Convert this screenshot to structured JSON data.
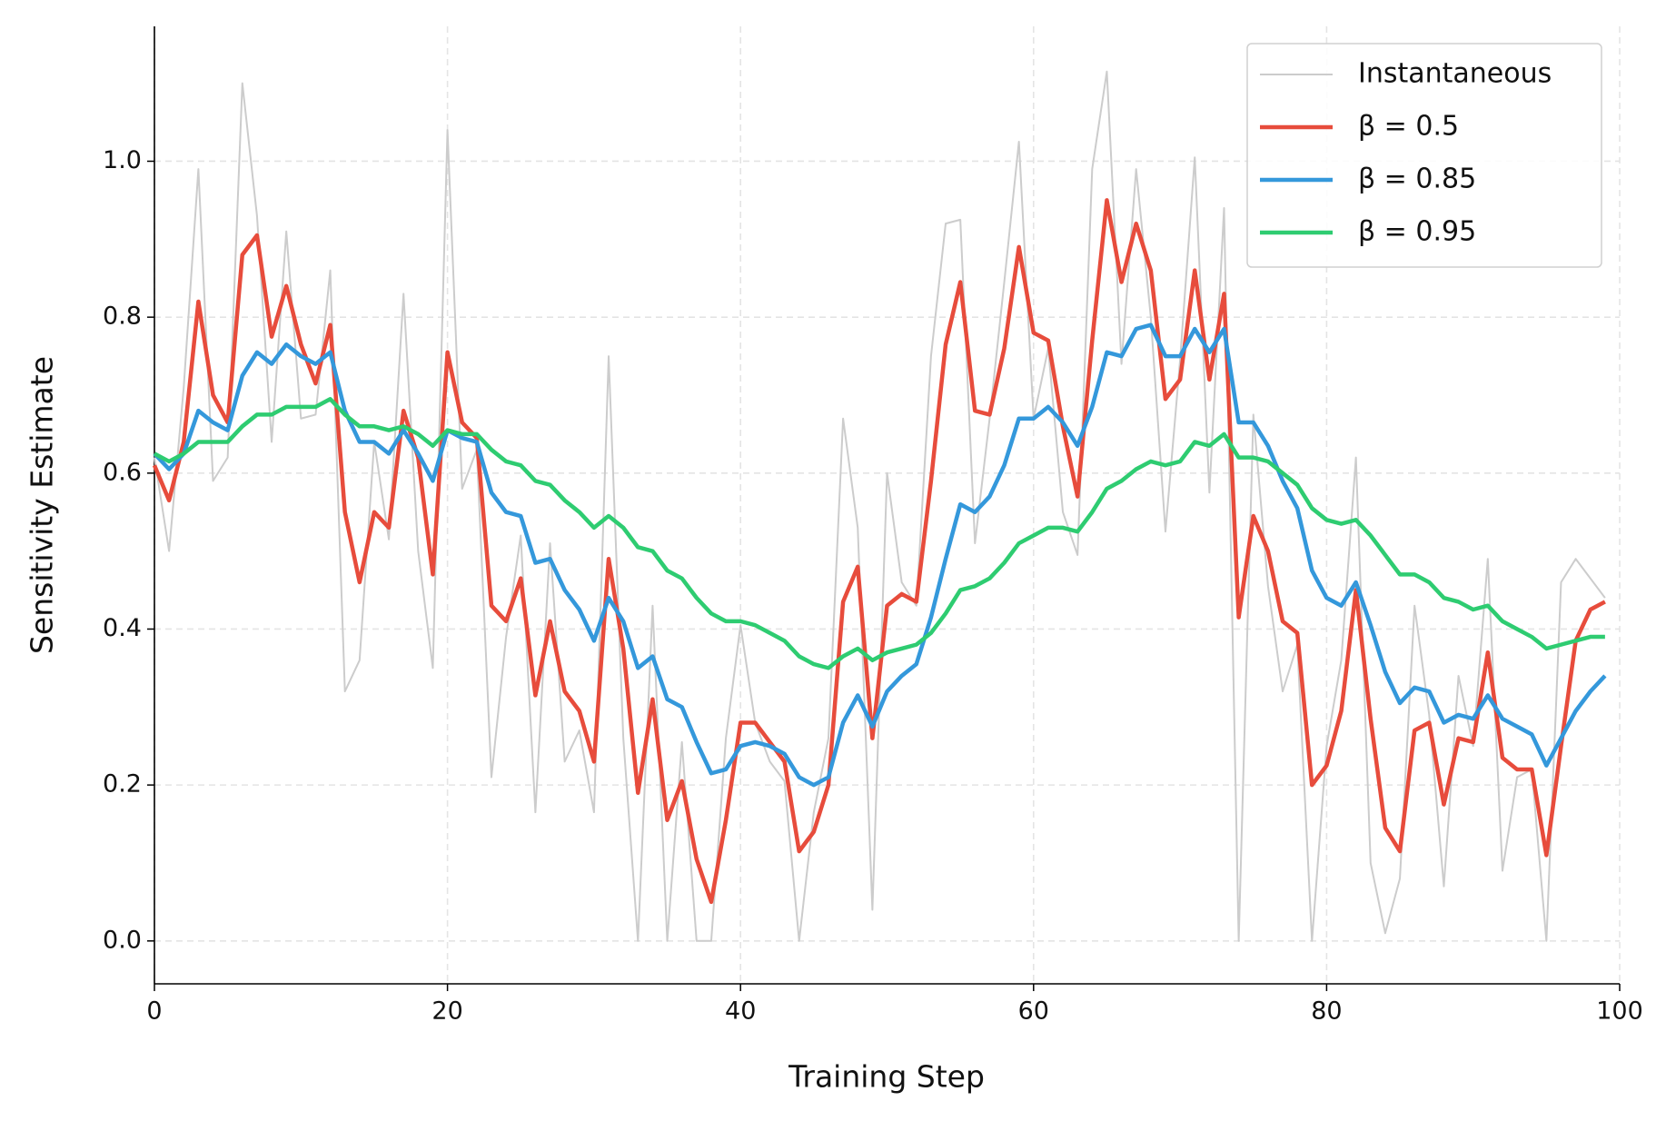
{
  "chart_data": {
    "type": "line",
    "xlabel": "Training Step",
    "ylabel": "Sensitivity Estimate",
    "xlim": [
      0,
      100
    ],
    "ylim": [
      -0.055,
      1.173
    ],
    "xticks": [
      0,
      20,
      40,
      60,
      80,
      100
    ],
    "yticks": [
      {
        "value": 0,
        "label": "0.0"
      },
      0.2,
      0.4,
      0.6,
      0.8,
      {
        "value": 1,
        "label": "1.0"
      }
    ],
    "grid": true,
    "legend": "upper right",
    "x": [
      0,
      1,
      2,
      3,
      4,
      5,
      6,
      7,
      8,
      9,
      10,
      11,
      12,
      13,
      14,
      15,
      16,
      17,
      18,
      19,
      20,
      21,
      22,
      23,
      24,
      25,
      26,
      27,
      28,
      29,
      30,
      31,
      32,
      33,
      34,
      35,
      36,
      37,
      38,
      39,
      40,
      41,
      42,
      43,
      44,
      45,
      46,
      47,
      48,
      49,
      50,
      51,
      52,
      53,
      54,
      55,
      56,
      57,
      58,
      59,
      60,
      61,
      62,
      63,
      64,
      65,
      66,
      67,
      68,
      69,
      70,
      71,
      72,
      73,
      74,
      75,
      76,
      77,
      78,
      79,
      80,
      81,
      82,
      83,
      84,
      85,
      86,
      87,
      88,
      89,
      90,
      91,
      92,
      93,
      94,
      95,
      96,
      97,
      98,
      99
    ],
    "series": [
      {
        "name": "Instantaneous",
        "color": "#cccccc",
        "width": 2,
        "values": [
          0.62,
          0.5,
          0.71,
          0.99,
          0.59,
          0.62,
          1.1,
          0.93,
          0.64,
          0.91,
          0.67,
          0.675,
          0.86,
          0.32,
          0.36,
          0.64,
          0.515,
          0.83,
          0.5,
          0.35,
          1.04,
          0.58,
          0.63,
          0.21,
          0.39,
          0.52,
          0.165,
          0.51,
          0.23,
          0.27,
          0.165,
          0.75,
          0.26,
          0,
          0.43,
          0,
          0.255,
          0,
          0,
          0.26,
          0.405,
          0.28,
          0.23,
          0.205,
          0,
          0.165,
          0.26,
          0.67,
          0.53,
          0.04,
          0.6,
          0.46,
          0.43,
          0.75,
          0.92,
          0.925,
          0.51,
          0.67,
          0.845,
          1.025,
          0.67,
          0.76,
          0.55,
          0.495,
          0.99,
          1.115,
          0.74,
          0.99,
          0.8,
          0.525,
          0.745,
          1.005,
          0.575,
          0.94,
          0,
          0.675,
          0.455,
          0.32,
          0.38,
          0,
          0.25,
          0.36,
          0.62,
          0.1,
          0.01,
          0.08,
          0.43,
          0.29,
          0.07,
          0.34,
          0.25,
          0.49,
          0.09,
          0.21,
          0.22,
          0,
          0.46,
          0.49,
          0.465,
          0.44
        ]
      },
      {
        "name": "β = 0.5",
        "color": "#e74c3c",
        "width": 4.5,
        "values": [
          0.61,
          0.565,
          0.64,
          0.82,
          0.7,
          0.665,
          0.88,
          0.905,
          0.775,
          0.84,
          0.765,
          0.715,
          0.79,
          0.55,
          0.46,
          0.55,
          0.53,
          0.68,
          0.62,
          0.47,
          0.755,
          0.665,
          0.645,
          0.43,
          0.41,
          0.465,
          0.315,
          0.41,
          0.32,
          0.295,
          0.23,
          0.49,
          0.375,
          0.19,
          0.31,
          0.155,
          0.205,
          0.105,
          0.05,
          0.155,
          0.28,
          0.28,
          0.255,
          0.23,
          0.115,
          0.14,
          0.2,
          0.435,
          0.48,
          0.26,
          0.43,
          0.445,
          0.435,
          0.59,
          0.765,
          0.845,
          0.68,
          0.675,
          0.76,
          0.89,
          0.78,
          0.77,
          0.66,
          0.57,
          0.77,
          0.95,
          0.845,
          0.92,
          0.86,
          0.695,
          0.72,
          0.86,
          0.72,
          0.83,
          0.415,
          0.545,
          0.5,
          0.41,
          0.395,
          0.2,
          0.225,
          0.295,
          0.45,
          0.285,
          0.145,
          0.115,
          0.27,
          0.28,
          0.175,
          0.26,
          0.255,
          0.37,
          0.235,
          0.22,
          0.22,
          0.11,
          0.25,
          0.385,
          0.425,
          0.435
        ]
      },
      {
        "name": "β = 0.85",
        "color": "#3498db",
        "width": 4.5,
        "values": [
          0.625,
          0.605,
          0.625,
          0.68,
          0.665,
          0.655,
          0.725,
          0.755,
          0.74,
          0.765,
          0.75,
          0.74,
          0.755,
          0.68,
          0.64,
          0.64,
          0.625,
          0.655,
          0.625,
          0.59,
          0.655,
          0.645,
          0.64,
          0.575,
          0.55,
          0.545,
          0.485,
          0.49,
          0.45,
          0.425,
          0.385,
          0.44,
          0.41,
          0.35,
          0.365,
          0.31,
          0.3,
          0.255,
          0.215,
          0.22,
          0.25,
          0.255,
          0.25,
          0.24,
          0.21,
          0.2,
          0.21,
          0.28,
          0.315,
          0.275,
          0.32,
          0.34,
          0.355,
          0.415,
          0.49,
          0.56,
          0.55,
          0.57,
          0.61,
          0.67,
          0.67,
          0.685,
          0.665,
          0.635,
          0.685,
          0.755,
          0.75,
          0.785,
          0.79,
          0.75,
          0.75,
          0.785,
          0.755,
          0.785,
          0.665,
          0.665,
          0.635,
          0.59,
          0.555,
          0.475,
          0.44,
          0.43,
          0.46,
          0.405,
          0.345,
          0.305,
          0.325,
          0.32,
          0.28,
          0.29,
          0.285,
          0.315,
          0.285,
          0.275,
          0.265,
          0.225,
          0.26,
          0.295,
          0.32,
          0.34
        ]
      },
      {
        "name": "β = 0.95",
        "color": "#2ecc71",
        "width": 4.5,
        "values": [
          0.625,
          0.615,
          0.625,
          0.64,
          0.64,
          0.64,
          0.66,
          0.675,
          0.675,
          0.685,
          0.685,
          0.685,
          0.695,
          0.675,
          0.66,
          0.66,
          0.655,
          0.66,
          0.65,
          0.635,
          0.655,
          0.65,
          0.65,
          0.63,
          0.615,
          0.61,
          0.59,
          0.585,
          0.565,
          0.55,
          0.53,
          0.545,
          0.53,
          0.505,
          0.5,
          0.475,
          0.465,
          0.44,
          0.42,
          0.41,
          0.41,
          0.405,
          0.395,
          0.385,
          0.365,
          0.355,
          0.35,
          0.365,
          0.375,
          0.36,
          0.37,
          0.375,
          0.38,
          0.395,
          0.42,
          0.45,
          0.455,
          0.465,
          0.485,
          0.51,
          0.52,
          0.53,
          0.53,
          0.525,
          0.55,
          0.58,
          0.59,
          0.605,
          0.615,
          0.61,
          0.615,
          0.64,
          0.635,
          0.65,
          0.62,
          0.62,
          0.615,
          0.6,
          0.585,
          0.555,
          0.54,
          0.535,
          0.54,
          0.52,
          0.495,
          0.47,
          0.47,
          0.46,
          0.44,
          0.435,
          0.425,
          0.43,
          0.41,
          0.4,
          0.39,
          0.375,
          0.38,
          0.385,
          0.39,
          0.39
        ]
      }
    ]
  }
}
